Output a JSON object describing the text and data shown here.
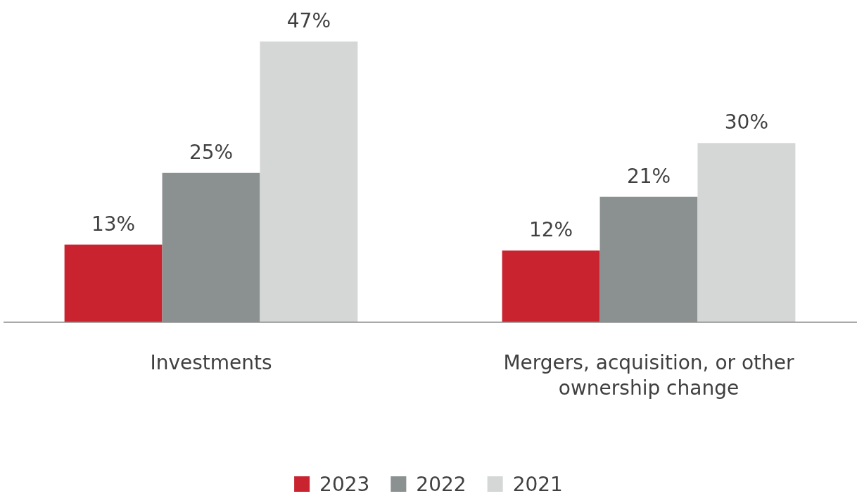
{
  "chart_data": {
    "type": "bar",
    "categories": [
      "Investments",
      "Mergers, acquisition, or other ownership change"
    ],
    "series": [
      {
        "name": "2023",
        "color": "#c8232f",
        "values": [
          13,
          12
        ],
        "value_labels": [
          "13%",
          "12%"
        ]
      },
      {
        "name": "2022",
        "color": "#8a9190",
        "values": [
          25,
          21
        ],
        "value_labels": [
          "25%",
          "21%"
        ]
      },
      {
        "name": "2021",
        "color": "#d5d6d6",
        "values": [
          47,
          30
        ],
        "value_labels": [
          "47%",
          "30%"
        ]
      }
    ],
    "legend": "bottom",
    "grid": false
  }
}
